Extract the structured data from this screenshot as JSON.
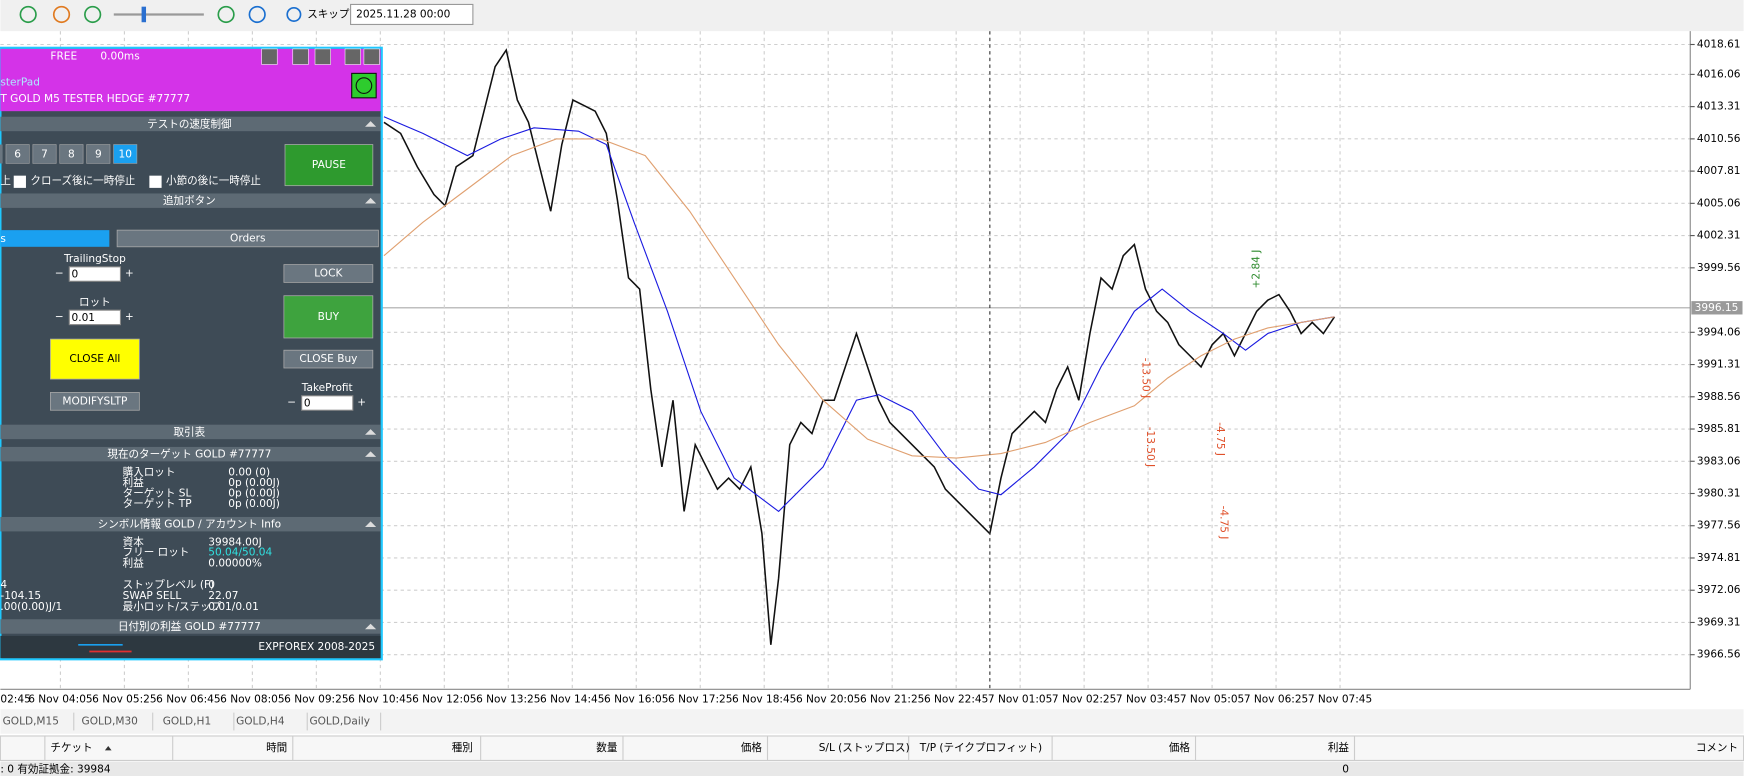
{
  "toolbar": {
    "skip": "スキップ",
    "date": "2025.11.28 00:00"
  },
  "panel": {
    "status": "FREE",
    "latency": "0.00ms",
    "title": "sterPad",
    "subtitle": "T GOLD M5 TESTER HEDGE  #77777",
    "speed_section": "テストの速度制御",
    "speeds": [
      "6",
      "7",
      "8",
      "9",
      "10"
    ],
    "pause": "PAUSE",
    "pause_options": [
      "上",
      "クローズ後に一時停止",
      "小節の後に一時停止"
    ],
    "extra_section": "追加ボタン",
    "tabs": [
      "s",
      "Orders"
    ],
    "trailing_label": "TrailingStop",
    "trailing": "0",
    "lock": "LOCK",
    "lot_label": "ロット",
    "lot": "0.01",
    "buy": "BUY",
    "close_all": "CLOSE All",
    "close_buy": "CLOSE Buy",
    "modify": "MODIFYSLTP",
    "tp_label": "TakeProfit",
    "tp": "0",
    "trade_section": "取引表",
    "target_section": "現在のターゲット GOLD #77777",
    "target_rows": [
      [
        "購入ロット",
        "0.00 (0)"
      ],
      [
        "利益",
        "0p (0.00J)"
      ],
      [
        "ターゲット SL",
        "0p (0.00J)"
      ],
      [
        "ターゲット TP",
        "0p (0.00J)"
      ]
    ],
    "symbol_section": "シンボル情報 GOLD / アカウント Info",
    "symbol_rows": [
      [
        "資本",
        "39984.00J"
      ],
      [
        "フリー ロット",
        "50.04/50.04"
      ],
      [
        "利益",
        "0.00000%"
      ],
      [
        "ストップレベル (F)",
        "0"
      ],
      [
        "SWAP SELL",
        "22.07"
      ],
      [
        "最小ロット/ステップ",
        "0.01/0.01"
      ]
    ],
    "symbol_left": [
      "4",
      "-104.15",
      ".00(0.00)J/1"
    ],
    "daily_section": "日付別の利益 GOLD #77777",
    "footer": "EXPFOREX 2008-2025"
  },
  "chart": {
    "ylim": [
      3963.61,
      4019.75
    ],
    "yticks": [
      4018.61,
      4016.06,
      4013.31,
      4010.56,
      4007.81,
      4005.06,
      4002.31,
      3999.56,
      3994.06,
      3991.31,
      3988.56,
      3985.81,
      3983.06,
      3980.31,
      3977.56,
      3974.81,
      3972.06,
      3969.31,
      3966.56
    ],
    "current_price": 3996.15,
    "time_labels": [
      "02:45",
      "6 Nov 04:05",
      "6 Nov 05:25",
      "6 Nov 06:45",
      "6 Nov 08:05",
      "6 Nov 09:25",
      "6 Nov 10:45",
      "6 Nov 12:05",
      "6 Nov 13:25",
      "6 Nov 14:45",
      "6 Nov 16:05",
      "6 Nov 17:25",
      "6 Nov 18:45",
      "6 Nov 20:05",
      "6 Nov 21:25",
      "6 Nov 22:45",
      "7 Nov 01:05",
      "7 Nov 02:25",
      "7 Nov 03:45",
      "7 Nov 05:05",
      "7 Nov 06:25",
      "7 Nov 07:45"
    ],
    "annotations": [
      {
        "text": "+2.84 J",
        "color": "#2e8b2e"
      },
      {
        "text": "-13.50 J",
        "color": "#e0502a"
      },
      {
        "text": "-13.50 J",
        "color": "#e0502a"
      },
      {
        "text": "-4.75 J",
        "color": "#e0502a"
      },
      {
        "text": "-4.75 J",
        "color": "#e0502a"
      }
    ]
  },
  "tabs": [
    "GOLD,M15",
    "GOLD,M30",
    "GOLD,H1",
    "GOLD,H4",
    "GOLD,Daily"
  ],
  "table": {
    "columns": [
      "チケット",
      "時間",
      "種別",
      "数量",
      "価格",
      "S/L (ストップロス)",
      "T/P (テイクプロフィット)",
      "価格",
      "利益",
      "コメント"
    ]
  },
  "status": {
    "left": ": 0  有効証拠金: 39984",
    "right": "0"
  }
}
